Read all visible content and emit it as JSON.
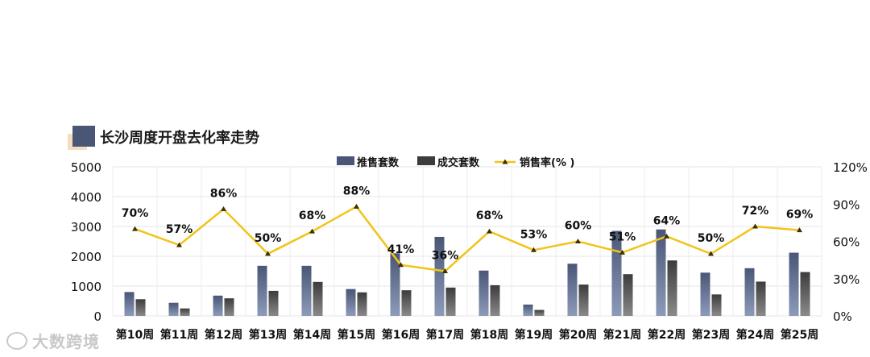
{
  "page_title": "长沙周度开盘去化率走势",
  "watermark": "大数跨境",
  "colors": {
    "bar_supply": "#4a5676",
    "bar_deal": "#3c3c3c",
    "line_rate": "#f2c318",
    "marker": "#3a3000",
    "title_square": "#4a5676",
    "title_shadow": "#f3dcc0"
  },
  "chart_data": {
    "type": "bar",
    "title": "",
    "categories": [
      "第10周",
      "第11周",
      "第12周",
      "第13周",
      "第14周",
      "第15周",
      "第16周",
      "第17周",
      "第18周",
      "第19周",
      "第20周",
      "第21周",
      "第22周",
      "第23周",
      "第24周",
      "第25周"
    ],
    "series": [
      {
        "name": "推售套数",
        "kind": "bar",
        "axis": "left",
        "values": [
          800,
          440,
          680,
          1680,
          1680,
          900,
          2100,
          2650,
          1520,
          380,
          1750,
          2850,
          2900,
          1450,
          1600,
          2120
        ]
      },
      {
        "name": "成交套数",
        "kind": "bar",
        "axis": "left",
        "values": [
          560,
          250,
          590,
          840,
          1140,
          790,
          860,
          950,
          1030,
          200,
          1050,
          1400,
          1860,
          720,
          1150,
          1470
        ]
      },
      {
        "name": "销售率(% )",
        "kind": "line",
        "axis": "right",
        "values": [
          70,
          57,
          86,
          50,
          68,
          88,
          41,
          36,
          68,
          53,
          60,
          51,
          64,
          50,
          72,
          69
        ],
        "labels": [
          "70%",
          "57%",
          "86%",
          "50%",
          "68%",
          "88%",
          "41%",
          "36%",
          "68%",
          "53%",
          "60%",
          "51%",
          "64%",
          "50%",
          "72%",
          "69%"
        ]
      }
    ],
    "y_left": {
      "ylim": [
        0,
        5000
      ],
      "ticks": [
        "0",
        "1000",
        "2000",
        "3000",
        "4000",
        "5000"
      ]
    },
    "y_right": {
      "ylim": [
        0,
        120
      ],
      "ticks": [
        "0%",
        "30%",
        "60%",
        "90%",
        "120%"
      ]
    },
    "xlabel": "",
    "ylabel": "",
    "grid": true,
    "legend_position": "top-center"
  }
}
